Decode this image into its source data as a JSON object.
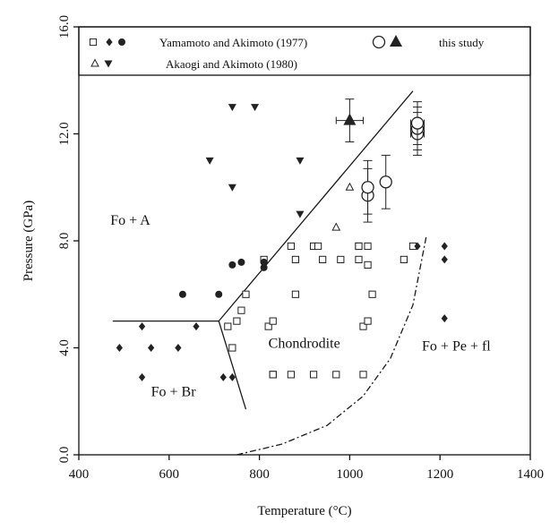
{
  "chart_data": {
    "type": "scatter",
    "xlabel": "Temperature (°C)",
    "ylabel": "Pressure (GPa)",
    "xlim": [
      400,
      1400
    ],
    "ylim": [
      0,
      16
    ],
    "xticks": [
      "400",
      "600",
      "800",
      "1000",
      "1200",
      "1400"
    ],
    "yticks": [
      "0.0",
      "4.0",
      "8.0",
      "12.0",
      "16.0"
    ],
    "grid": false,
    "legend": {
      "position": "top",
      "entries": [
        {
          "label": "Yamamoto and Akimoto (1977)",
          "symbols": [
            "open-square",
            "filled-diamond",
            "filled-circle"
          ]
        },
        {
          "label": "this study",
          "symbols": [
            "open-circle",
            "filled-triangle"
          ]
        },
        {
          "label": "Akaogi and Akimoto (1980)",
          "symbols": [
            "open-triangle",
            "filled-triangle-down"
          ]
        }
      ]
    },
    "region_labels": [
      {
        "text": "Fo + A",
        "x": 470,
        "y": 8.6
      },
      {
        "text": "Chondrodite",
        "x": 820,
        "y": 4.0
      },
      {
        "text": "Fo + Pe + fl",
        "x": 1160,
        "y": 3.9
      },
      {
        "text": "Fo + Br",
        "x": 560,
        "y": 2.2
      }
    ],
    "series": [
      {
        "source": "Yamamoto and Akimoto (1977)",
        "symbol": "open-square",
        "x": [
          730,
          760,
          770,
          740,
          750,
          810,
          820,
          830,
          870,
          920,
          930,
          880,
          940,
          980,
          1020,
          1040,
          1020,
          1030,
          1040,
          1050,
          1120,
          1140,
          880,
          920,
          970,
          1030,
          1020,
          1040,
          830,
          830,
          870
        ],
        "y": [
          4.8,
          5.4,
          6.0,
          4.0,
          5.0,
          7.3,
          4.8,
          5.0,
          7.8,
          7.8,
          7.8,
          6.0,
          7.3,
          7.3,
          7.3,
          7.8,
          7.8,
          4.8,
          5.0,
          6.0,
          7.3,
          7.8,
          7.3,
          3.0,
          3.0,
          3.0,
          7.8,
          7.1,
          3.0,
          3.0,
          3.0
        ]
      },
      {
        "source": "Yamamoto and Akimoto (1977)",
        "symbol": "filled-diamond",
        "x": [
          490,
          540,
          560,
          620,
          660,
          540,
          720,
          740,
          1150,
          1210,
          1210,
          1210
        ],
        "y": [
          4.0,
          4.8,
          4.0,
          4.0,
          4.8,
          2.9,
          2.9,
          2.9,
          7.8,
          7.8,
          7.3,
          5.1
        ]
      },
      {
        "source": "Yamamoto and Akimoto (1977)",
        "symbol": "filled-circle",
        "x": [
          630,
          710,
          740,
          760,
          810,
          810
        ],
        "y": [
          6.0,
          6.0,
          7.1,
          7.2,
          7.2,
          7.0
        ]
      },
      {
        "source": "Akaogi and Akimoto (1980)",
        "symbol": "filled-triangle-down",
        "x": [
          690,
          740,
          740,
          790,
          890,
          890
        ],
        "y": [
          11.0,
          13.0,
          10.0,
          13.0,
          11.0,
          9.0
        ]
      },
      {
        "source": "Akaogi and Akimoto (1980)",
        "symbol": "open-triangle",
        "x": [
          1000,
          970
        ],
        "y": [
          10.0,
          8.5
        ]
      },
      {
        "source": "this study",
        "symbol": "open-circle",
        "x": [
          1040,
          1040,
          1080,
          1150,
          1150,
          1150
        ],
        "y": [
          9.7,
          10.0,
          10.2,
          12.0,
          12.2,
          12.4
        ],
        "yerr": [
          1.0,
          1.0,
          1.0,
          0.8,
          0.8,
          0.8
        ],
        "xerr": [
          0,
          0,
          0,
          15,
          15,
          15
        ]
      },
      {
        "source": "this study",
        "symbol": "filled-triangle",
        "x": [
          1000
        ],
        "y": [
          12.5
        ],
        "yerr": [
          0.8
        ],
        "xerr": [
          30
        ]
      }
    ],
    "phase_boundaries": [
      {
        "name": "fo-a-chondrodite",
        "style": "solid",
        "points": [
          [
            710,
            5.0
          ],
          [
            1140,
            13.6
          ]
        ]
      },
      {
        "name": "fo-a-fo-br",
        "style": "solid",
        "points": [
          [
            475,
            5.0
          ],
          [
            710,
            5.0
          ]
        ]
      },
      {
        "name": "fo-br-chondrodite",
        "style": "solid",
        "points": [
          [
            710,
            5.0
          ],
          [
            770,
            1.7
          ]
        ]
      },
      {
        "name": "chondrodite-fo-pe-fl",
        "style": "dash-dot",
        "points": [
          [
            750,
            0.0
          ],
          [
            850,
            0.4
          ],
          [
            950,
            1.1
          ],
          [
            1030,
            2.2
          ],
          [
            1090,
            3.6
          ],
          [
            1140,
            5.6
          ],
          [
            1170,
            8.2
          ]
        ]
      }
    ]
  }
}
